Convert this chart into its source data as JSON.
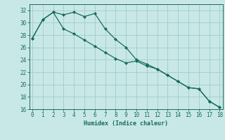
{
  "title": "",
  "xlabel": "Humidex (Indice chaleur)",
  "bg_color": "#c8e8e8",
  "line_color": "#1a6b5a",
  "grid_color": "#a8cece",
  "x": [
    0,
    1,
    2,
    3,
    4,
    5,
    6,
    7,
    8,
    9,
    10,
    11,
    12,
    13,
    14,
    15,
    16,
    17,
    18
  ],
  "line1": [
    27.5,
    30.5,
    31.7,
    31.3,
    31.7,
    31.0,
    31.5,
    29.0,
    27.3,
    26.0,
    24.0,
    23.3,
    22.5,
    21.5,
    20.5,
    19.5,
    19.3,
    17.3,
    16.3
  ],
  "line2": [
    27.5,
    30.5,
    31.7,
    29.0,
    28.2,
    27.2,
    26.2,
    25.2,
    24.2,
    23.5,
    23.8,
    23.0,
    22.5,
    21.5,
    20.5,
    19.5,
    19.3,
    17.3,
    16.3
  ],
  "ylim": [
    16,
    33
  ],
  "xlim": [
    -0.3,
    18.3
  ],
  "yticks": [
    16,
    18,
    20,
    22,
    24,
    26,
    28,
    30,
    32
  ],
  "xticks": [
    0,
    1,
    2,
    3,
    4,
    5,
    6,
    7,
    8,
    9,
    10,
    11,
    12,
    13,
    14,
    15,
    16,
    17,
    18
  ]
}
